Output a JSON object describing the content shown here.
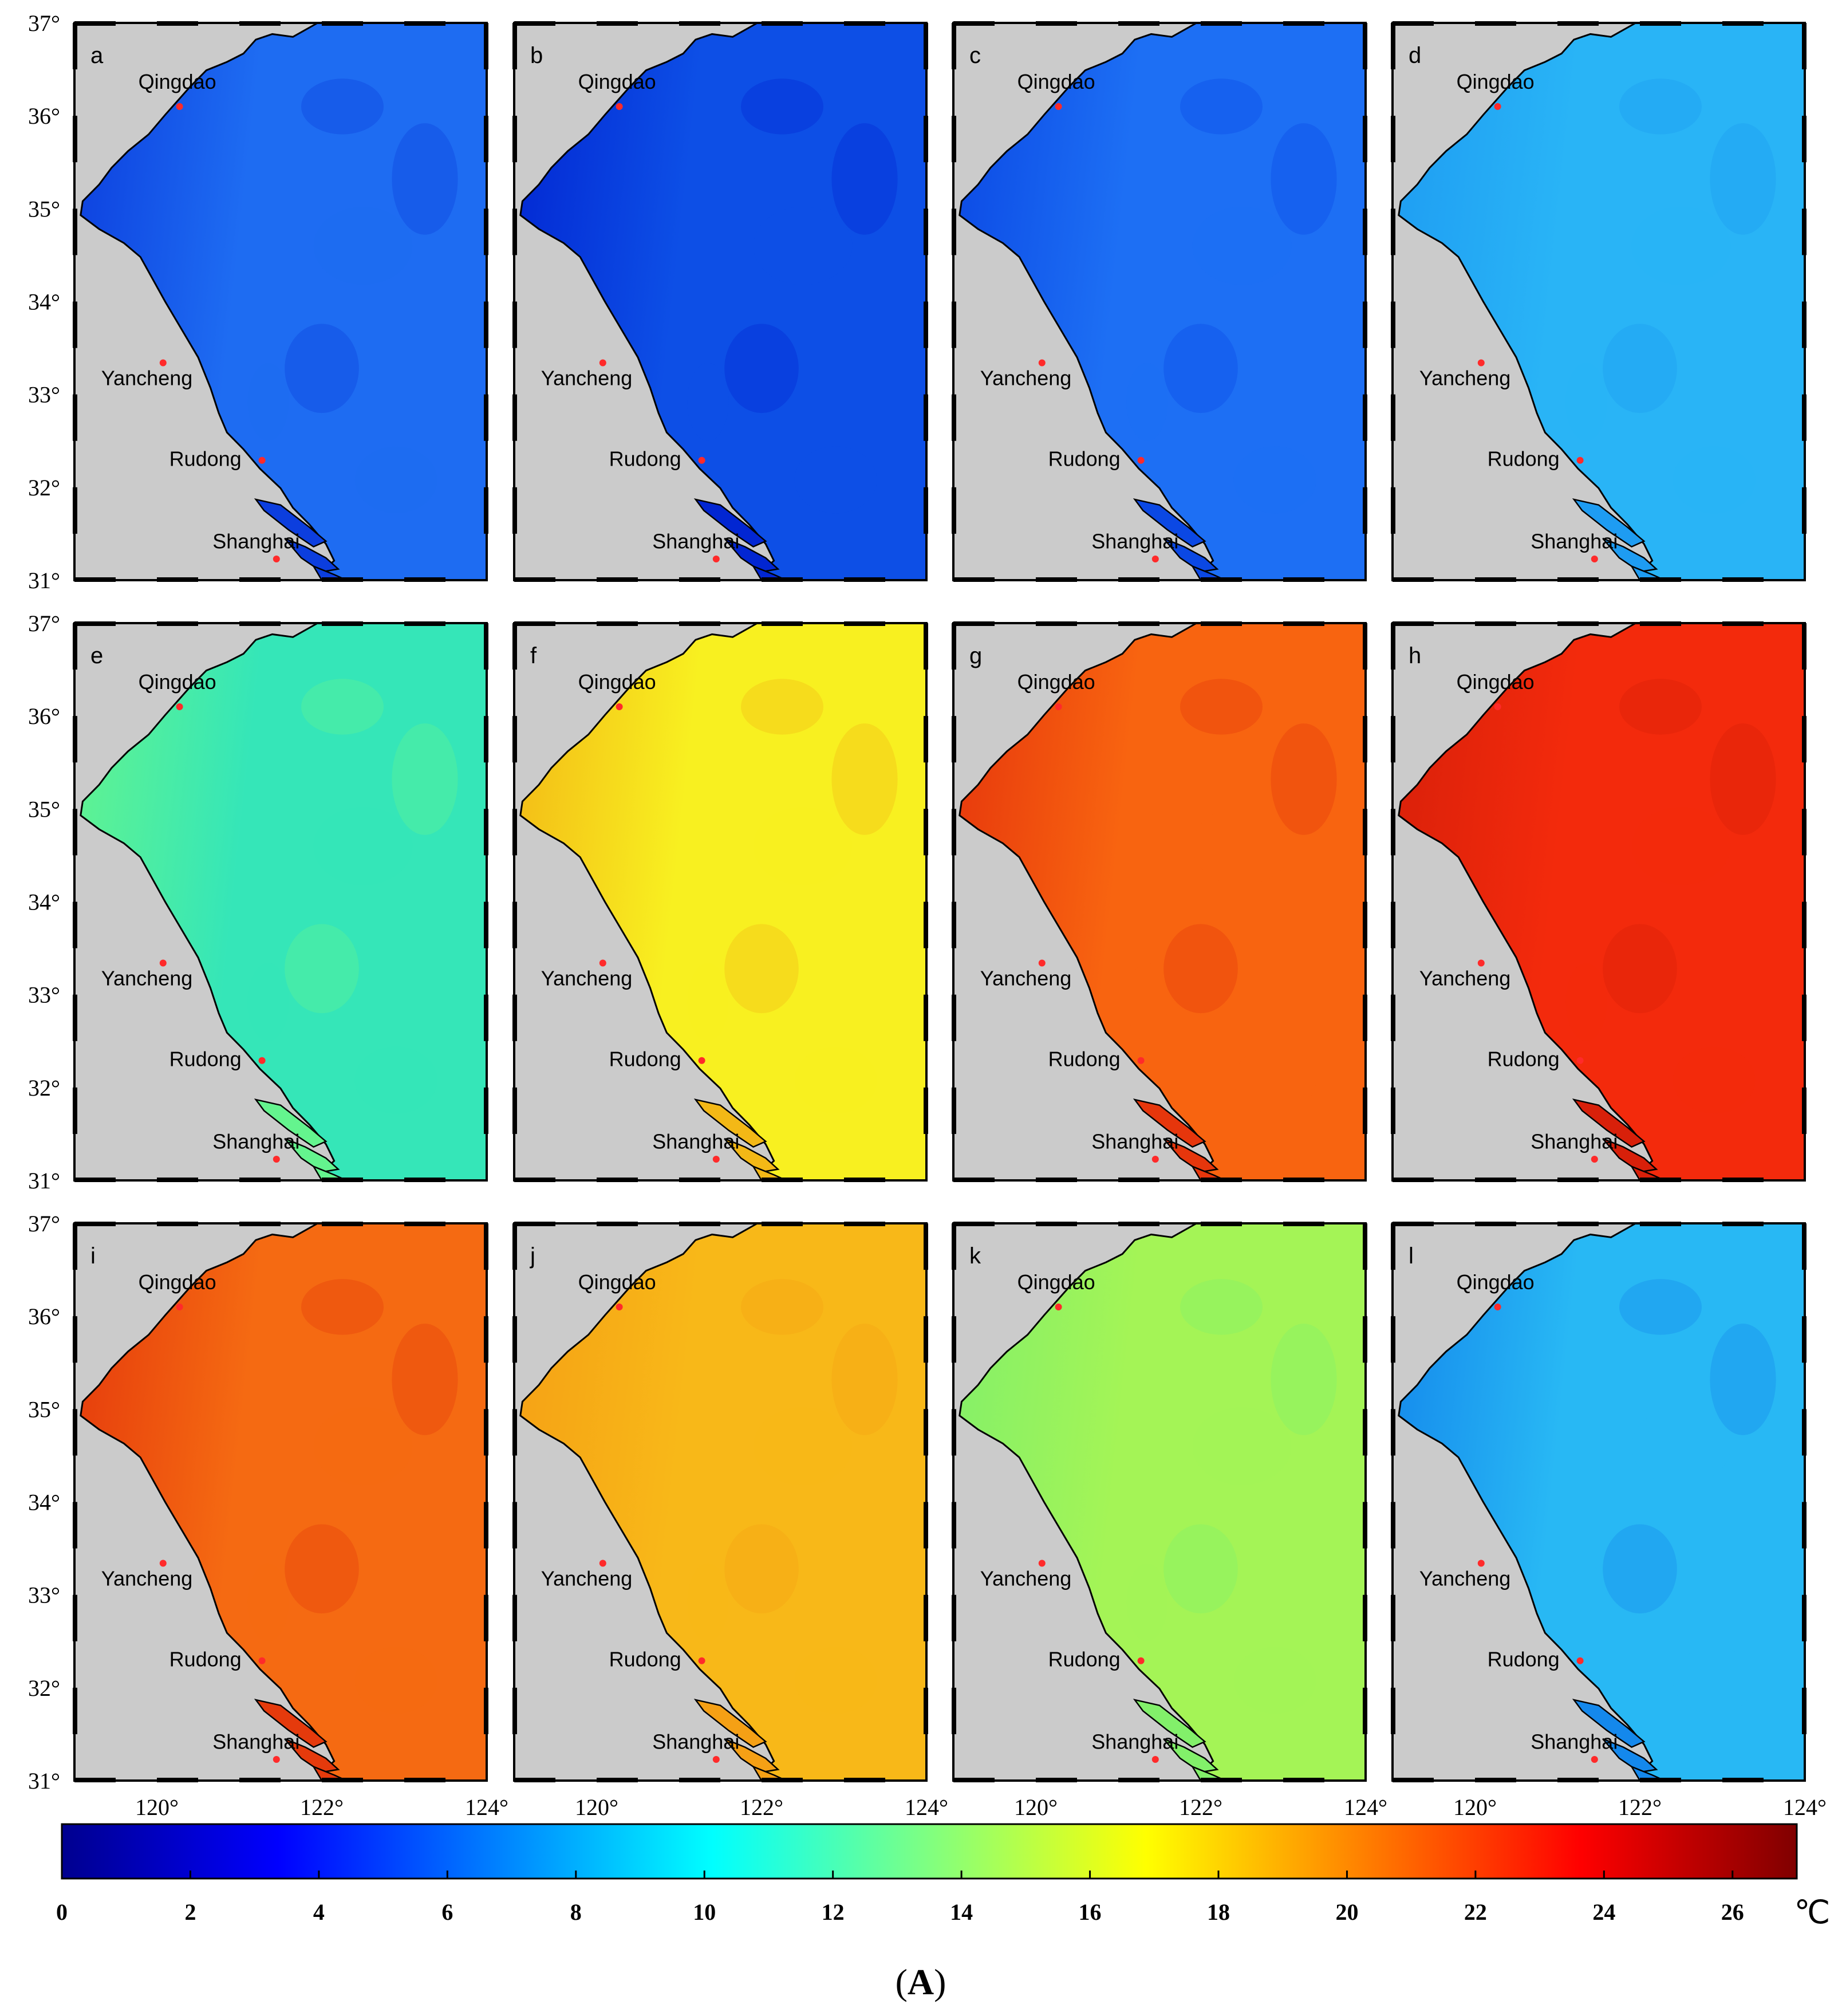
{
  "figure": {
    "caption_letter": "A",
    "panel_letters": [
      "a",
      "b",
      "c",
      "d",
      "e",
      "f",
      "g",
      "h",
      "i",
      "j",
      "k",
      "l"
    ],
    "panel_colors": [
      "#1e6cf2",
      "#0d4fe6",
      "#1d6ff4",
      "#29b4f6",
      "#35e6b8",
      "#f8f020",
      "#f86410",
      "#f32a0c",
      "#f56a12",
      "#f8b818",
      "#a4f456",
      "#28b8f4"
    ],
    "panel_nearshore_colors": [
      "#0c3ede",
      "#0226d2",
      "#0b48e4",
      "#1e9cf2",
      "#64f48e",
      "#f3b816",
      "#e6360c",
      "#d8200a",
      "#e53a0c",
      "#f5a015",
      "#82f06a",
      "#1488ec"
    ],
    "latitude_labels": [
      "37°",
      "36°",
      "35°",
      "34°",
      "33°",
      "32°",
      "31°"
    ],
    "longitude_labels": [
      "120°",
      "122°",
      "124°"
    ],
    "cities": [
      "Qingdao",
      "Yancheng",
      "Rudong",
      "Shanghai"
    ],
    "colors": {
      "land": "#cbcbcb",
      "marker": "#ff2a2a",
      "coast": "#000000"
    }
  },
  "colorbar": {
    "tick_labels": [
      "0",
      "2",
      "4",
      "6",
      "8",
      "10",
      "12",
      "14",
      "16",
      "18",
      "20",
      "22",
      "24",
      "26"
    ],
    "range": [
      0,
      27
    ],
    "unit": "℃",
    "stops": [
      "#00008f",
      "#0000ff",
      "#0080ff",
      "#00ffff",
      "#80ff80",
      "#ffff00",
      "#ff8000",
      "#ff0000",
      "#800000"
    ]
  }
}
